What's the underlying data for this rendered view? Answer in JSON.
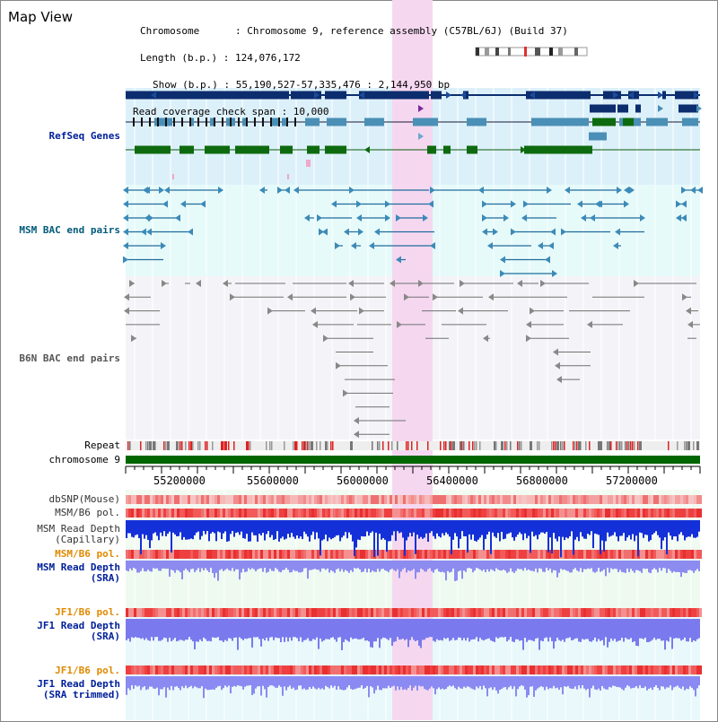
{
  "view_title": "Map View",
  "info": {
    "chromosome": "Chromosome      : Chromosome 9, reference assembly (C57BL/6J) (Build 37)",
    "length": "Length (b.p.) : 124,076,172",
    "show": "Show (b.p.) : 55,190,527-57,335,476 : 2,144,950 bp",
    "coverage": "Read coverage check span : 10,000"
  },
  "tracks": {
    "refseq": "RefSeq Genes",
    "msm_bac": "MSM BAC end pairs",
    "b6n_bac": "B6N BAC end pairs",
    "repeat": "Repeat",
    "chromosome": "chromosome 9",
    "dbsnp": "dbSNP(Mouse)",
    "msm_b6_pol_1": "MSM/B6 pol.",
    "msm_depth_cap": "MSM Read Depth\n(Capillary)",
    "msm_b6_pol_2": "MSM/B6 pol.",
    "msm_depth_sra": "MSM Read Depth\n(SRA)",
    "jf1_b6_pol_1": "JF1/B6 pol.",
    "jf1_depth_sra": "JF1 Read Depth\n(SRA)",
    "jf1_b6_pol_2": "JF1/B6 pol.",
    "jf1_depth_trim": "JF1 Read Depth\n(SRA trimmed)"
  },
  "axis": {
    "ticks": [
      "55200000",
      "55600000",
      "56000000",
      "56400000",
      "56800000",
      "57200000"
    ]
  },
  "colors": {
    "refseq_bg": "#dcf0fa",
    "msm_bg": "#e6fafa",
    "b6n_bg": "#f4f4f8",
    "highlight": "#f5d8f0",
    "refseq_dark": "#0c2d6e",
    "refseq_mid": "#4a8fb5",
    "refseq_green": "#0e6a0e",
    "msm_line": "#226c9c",
    "b6n_line": "#707070",
    "chrom_bar": "#006600",
    "label_blue": "#00209a",
    "label_teal": "#005a7a",
    "label_orange": "#e08a00",
    "label_gray": "#333333"
  }
}
